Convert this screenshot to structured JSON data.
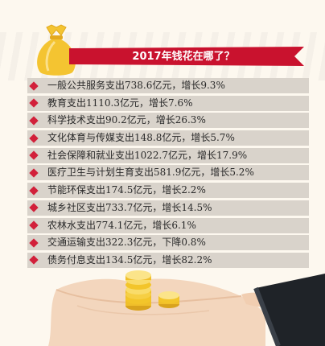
{
  "title": "2017年钱花在哪了？",
  "colors": {
    "bullet": "#d2203a",
    "ribbon": "#c9122e",
    "row_bg": "#d9d3cb",
    "bag": "#f4c431",
    "coin": "#f3c52a",
    "hand": "#f3d6bd",
    "sleeve": "#1f2328"
  },
  "items": [
    {
      "text": "一般公共服务支出738.6亿元，增长9.3%"
    },
    {
      "text": "教育支出1110.3亿元，增长7.6%"
    },
    {
      "text": "科学技术支出90.2亿元，增长26.3%"
    },
    {
      "text": "文化体育与传媒支出148.8亿元，增长5.7%"
    },
    {
      "text": "社会保障和就业支出1022.7亿元，增长17.9%"
    },
    {
      "text": "医疗卫生与计划生育支出581.9亿元，增长5.2%"
    },
    {
      "text": "节能环保支出174.5亿元，增长2.2%"
    },
    {
      "text": "城乡社区支出733.7亿元，增长14.5%"
    },
    {
      "text": "农林水支出774.1亿元，增长6.1%"
    },
    {
      "text": "交通运输支出322.3亿元，下降0.8%"
    },
    {
      "text": "债务付息支出134.5亿元，增长82.2%"
    }
  ]
}
